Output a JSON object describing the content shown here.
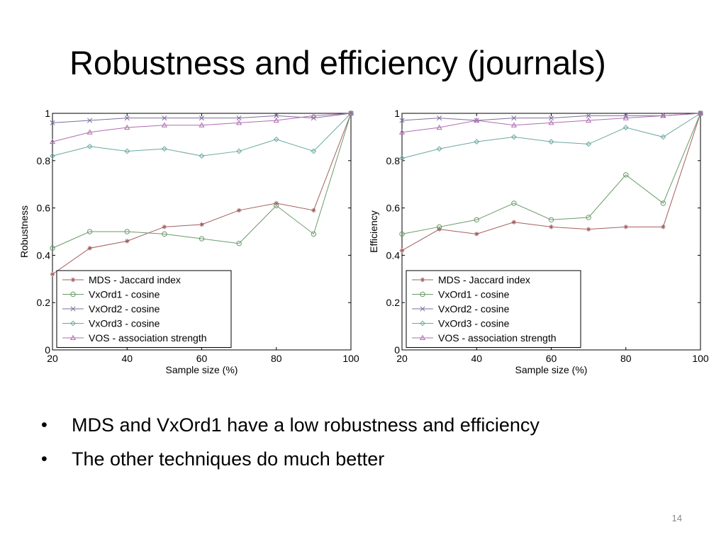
{
  "slide": {
    "title": "Robustness and efficiency (journals)",
    "bullets": [
      "MDS and VxOrd1 have a low robustness and efficiency",
      "The other techniques do much better"
    ],
    "bullet_symbol": "•",
    "page_number": "14"
  },
  "colors": {
    "MDS - Jaccard index": "#a45e5e",
    "VxOrd1 - cosine": "#6a9a6a",
    "VxOrd2 - cosine": "#7c6e9e",
    "VxOrd3 - cosine": "#6aa8a0",
    "VOS - association strength": "#b06cb0"
  },
  "markers": {
    "MDS - Jaccard index": "star",
    "VxOrd1 - cosine": "circle",
    "VxOrd2 - cosine": "x",
    "VxOrd3 - cosine": "diamond",
    "VOS - association strength": "triangle"
  },
  "chart_data": [
    {
      "type": "line",
      "xlabel": "Sample size (%)",
      "ylabel": "Robustness",
      "xlim": [
        20,
        100
      ],
      "ylim": [
        0,
        1
      ],
      "xticks": [
        "20",
        "40",
        "60",
        "80",
        "100"
      ],
      "yticks": [
        "0",
        "0.2",
        "0.4",
        "0.6",
        "0.8",
        "1"
      ],
      "legend_position": "bottom-left",
      "grid": false,
      "x": [
        20,
        30,
        40,
        50,
        60,
        70,
        80,
        90,
        100
      ],
      "series": [
        {
          "name": "MDS - Jaccard index",
          "values": [
            0.32,
            0.43,
            0.46,
            0.52,
            0.53,
            0.59,
            0.62,
            0.59,
            1.0
          ]
        },
        {
          "name": "VxOrd1 - cosine",
          "values": [
            0.43,
            0.5,
            0.5,
            0.49,
            0.47,
            0.45,
            0.61,
            0.49,
            1.0
          ]
        },
        {
          "name": "VxOrd2 - cosine",
          "values": [
            0.96,
            0.97,
            0.98,
            0.98,
            0.98,
            0.98,
            0.99,
            0.98,
            1.0
          ]
        },
        {
          "name": "VxOrd3 - cosine",
          "values": [
            0.82,
            0.86,
            0.84,
            0.85,
            0.82,
            0.84,
            0.89,
            0.84,
            1.0
          ]
        },
        {
          "name": "VOS - association strength",
          "values": [
            0.88,
            0.92,
            0.94,
            0.95,
            0.95,
            0.96,
            0.97,
            0.99,
            1.0
          ]
        }
      ]
    },
    {
      "type": "line",
      "xlabel": "Sample size (%)",
      "ylabel": "Efficiency",
      "xlim": [
        20,
        100
      ],
      "ylim": [
        0,
        1
      ],
      "xticks": [
        "20",
        "40",
        "60",
        "80",
        "100"
      ],
      "yticks": [
        "0",
        "0.2",
        "0.4",
        "0.6",
        "0.8",
        "1"
      ],
      "legend_position": "bottom-left",
      "grid": false,
      "x": [
        20,
        30,
        40,
        50,
        60,
        70,
        80,
        90,
        100
      ],
      "series": [
        {
          "name": "MDS - Jaccard index",
          "values": [
            0.42,
            0.51,
            0.49,
            0.54,
            0.52,
            0.51,
            0.52,
            0.52,
            1.0
          ]
        },
        {
          "name": "VxOrd1 - cosine",
          "values": [
            0.49,
            0.52,
            0.55,
            0.62,
            0.55,
            0.56,
            0.74,
            0.62,
            1.0
          ]
        },
        {
          "name": "VxOrd2 - cosine",
          "values": [
            0.97,
            0.98,
            0.97,
            0.98,
            0.98,
            0.99,
            0.99,
            0.99,
            1.0
          ]
        },
        {
          "name": "VxOrd3 - cosine",
          "values": [
            0.81,
            0.85,
            0.88,
            0.9,
            0.88,
            0.87,
            0.94,
            0.9,
            1.0
          ]
        },
        {
          "name": "VOS - association strength",
          "values": [
            0.92,
            0.94,
            0.97,
            0.95,
            0.96,
            0.97,
            0.98,
            0.99,
            1.0
          ]
        }
      ]
    }
  ]
}
